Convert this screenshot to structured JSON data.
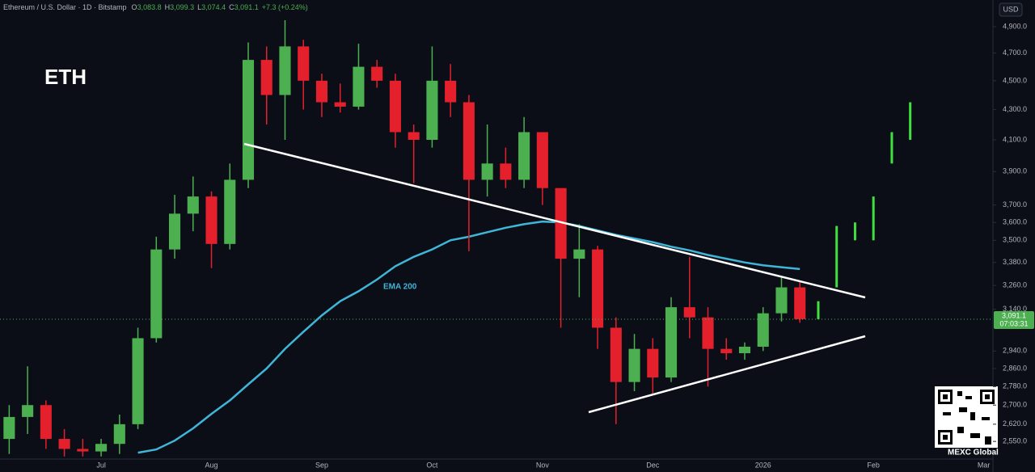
{
  "chart_data": {
    "type": "candlestick",
    "title": "ETH",
    "subtitle": "Ethereum / U.S. Dollar · 1D · Bitstamp",
    "ohlc": [
      {
        "key": "O",
        "value": "3,083.8"
      },
      {
        "key": "H",
        "value": "3,099.3"
      },
      {
        "key": "L",
        "value": "3,074.4"
      },
      {
        "key": "C",
        "value": "3,091.1"
      }
    ],
    "change": "+7.3 (+0.24%)",
    "currency": "USD",
    "watermark": "MEXC Global",
    "countdown": "07:03:31",
    "last_price": {
      "value": 3091.1,
      "label": "3,091.1"
    },
    "log_scale": true,
    "grid": false,
    "up_color": "#4caf50",
    "down_color": "#e3202c",
    "categories": [
      null,
      null,
      null,
      null,
      null,
      "Jul",
      null,
      null,
      null,
      null,
      null,
      "Aug",
      null,
      null,
      null,
      null,
      null,
      "Sep",
      null,
      null,
      null,
      null,
      null,
      "Oct",
      null,
      null,
      null,
      null,
      null,
      "Nov",
      null,
      null,
      null,
      null,
      null,
      "Dec",
      null,
      null,
      null,
      null,
      null,
      "2026",
      null,
      null,
      null,
      null,
      null,
      "Feb",
      null,
      null,
      null,
      null,
      null,
      "Mar"
    ],
    "open": [
      2560,
      2650,
      2700,
      2560,
      2520,
      2510,
      2540,
      2620,
      3000,
      3450,
      3650,
      3750,
      3480,
      3850,
      4650,
      4400,
      4750,
      4500,
      4350,
      4320,
      4600,
      4500,
      4150,
      4100,
      4500,
      4350,
      3850,
      3950,
      3850,
      4150,
      3800,
      3400,
      3450,
      3050,
      2800,
      2950,
      2820,
      3150,
      3100,
      2950,
      2930,
      2960,
      3120,
      3250,
      null,
      null,
      null,
      null,
      null,
      null,
      null,
      null,
      null,
      null
    ],
    "high": [
      2700,
      2870,
      2720,
      2600,
      2560,
      2560,
      2660,
      3050,
      3520,
      3760,
      3870,
      3780,
      3950,
      4780,
      4750,
      4950,
      4800,
      4550,
      4480,
      4770,
      4650,
      4550,
      4200,
      4750,
      4620,
      4400,
      4200,
      4050,
      4250,
      4150,
      3800,
      3590,
      3470,
      3100,
      3020,
      3000,
      3200,
      3410,
      3150,
      3000,
      2980,
      3150,
      3300,
      3280,
      null,
      null,
      null,
      null,
      null,
      null,
      null,
      null,
      null,
      null
    ],
    "low": [
      2500,
      2580,
      2520,
      2490,
      2490,
      2490,
      2500,
      2600,
      2980,
      3400,
      3550,
      3350,
      3450,
      3800,
      4200,
      4100,
      4300,
      4250,
      4280,
      4300,
      4450,
      4050,
      3830,
      4050,
      4250,
      3440,
      3750,
      3800,
      3800,
      3700,
      3050,
      3200,
      2950,
      2620,
      2760,
      2750,
      2800,
      3000,
      2780,
      2900,
      2900,
      2940,
      3080,
      3074,
      null,
      null,
      null,
      null,
      null,
      null,
      null,
      null,
      null,
      null
    ],
    "close": [
      2650,
      2700,
      2560,
      2520,
      2510,
      2540,
      2620,
      3000,
      3450,
      3650,
      3750,
      3480,
      3850,
      4650,
      4400,
      4750,
      4500,
      4350,
      4320,
      4600,
      4500,
      4150,
      4100,
      4500,
      4350,
      3850,
      3950,
      3850,
      4150,
      3800,
      3400,
      3450,
      3050,
      2800,
      2950,
      2820,
      3150,
      3100,
      2950,
      2930,
      2960,
      3120,
      3250,
      3091.1,
      null,
      null,
      null,
      null,
      null,
      null,
      null,
      null,
      null,
      null
    ],
    "projection": {
      "color": "#3fe03f",
      "open": [
        null,
        null,
        null,
        null,
        null,
        null,
        null,
        null,
        null,
        null,
        null,
        null,
        null,
        null,
        null,
        null,
        null,
        null,
        null,
        null,
        null,
        null,
        null,
        null,
        null,
        null,
        null,
        null,
        null,
        null,
        null,
        null,
        null,
        null,
        null,
        null,
        null,
        null,
        null,
        null,
        null,
        null,
        null,
        null,
        3091.1,
        3250,
        3500,
        3500,
        3950,
        4100,
        null,
        null,
        null,
        null
      ],
      "close": [
        null,
        null,
        null,
        null,
        null,
        null,
        null,
        null,
        null,
        null,
        null,
        null,
        null,
        null,
        null,
        null,
        null,
        null,
        null,
        null,
        null,
        null,
        null,
        null,
        null,
        null,
        null,
        null,
        null,
        null,
        null,
        null,
        null,
        null,
        null,
        null,
        null,
        null,
        null,
        null,
        null,
        null,
        null,
        null,
        3180,
        3580,
        3600,
        3750,
        4150,
        4350,
        null,
        null,
        null,
        null
      ]
    },
    "ema": {
      "name": "EMA 200",
      "color": "#3fb6d8",
      "values": [
        null,
        null,
        null,
        null,
        null,
        null,
        null,
        2505,
        2518,
        2553,
        2603,
        2663,
        2720,
        2790,
        2860,
        2950,
        3030,
        3110,
        3180,
        3230,
        3290,
        3360,
        3410,
        3450,
        3500,
        3520,
        3545,
        3570,
        3590,
        3605,
        3600,
        3580,
        3555,
        3530,
        3510,
        3490,
        3465,
        3445,
        3420,
        3400,
        3380,
        3365,
        3355,
        3345,
        null,
        null,
        null,
        null,
        null,
        null,
        null,
        null,
        null,
        null
      ]
    },
    "ylim": [
      2480,
      5110
    ],
    "yticks": [
      {
        "value": 4900,
        "label": "4,900.0"
      },
      {
        "value": 4700,
        "label": "4,700.0"
      },
      {
        "value": 4500,
        "label": "4,500.0"
      },
      {
        "value": 4300,
        "label": "4,300.0"
      },
      {
        "value": 4100,
        "label": "4,100.0"
      },
      {
        "value": 3900,
        "label": "3,900.0"
      },
      {
        "value": 3700,
        "label": "3,700.0"
      },
      {
        "value": 3600,
        "label": "3,600.0"
      },
      {
        "value": 3500,
        "label": "3,500.0"
      },
      {
        "value": 3380,
        "label": "3,380.0"
      },
      {
        "value": 3260,
        "label": "3,260.0"
      },
      {
        "value": 3140,
        "label": "3,140.0"
      },
      {
        "value": 2940,
        "label": "2,940.0"
      },
      {
        "value": 2860,
        "label": "2,860.0"
      },
      {
        "value": 2780,
        "label": "2,780.0"
      },
      {
        "value": 2700,
        "label": "2,700.0"
      },
      {
        "value": 2620,
        "label": "2,620.0"
      },
      {
        "value": 2550,
        "label": "2,550.0"
      }
    ]
  }
}
